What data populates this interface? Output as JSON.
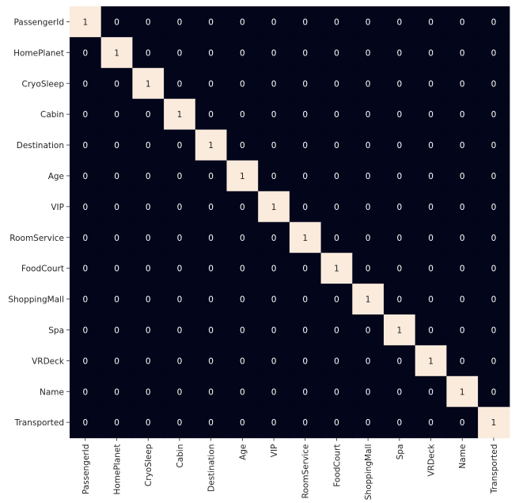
{
  "chart_data": {
    "type": "heatmap",
    "title": "",
    "xlabel": "",
    "ylabel": "",
    "labels": [
      "PassengerId",
      "HomePlanet",
      "CryoSleep",
      "Cabin",
      "Destination",
      "Age",
      "VIP",
      "RoomService",
      "FoodCourt",
      "ShoppingMall",
      "Spa",
      "VRDeck",
      "Name",
      "Transported"
    ],
    "matrix": [
      [
        1,
        0,
        0,
        0,
        0,
        0,
        0,
        0,
        0,
        0,
        0,
        0,
        0,
        0
      ],
      [
        0,
        1,
        0,
        0,
        0,
        0,
        0,
        0,
        0,
        0,
        0,
        0,
        0,
        0
      ],
      [
        0,
        0,
        1,
        0,
        0,
        0,
        0,
        0,
        0,
        0,
        0,
        0,
        0,
        0
      ],
      [
        0,
        0,
        0,
        1,
        0,
        0,
        0,
        0,
        0,
        0,
        0,
        0,
        0,
        0
      ],
      [
        0,
        0,
        0,
        0,
        1,
        0,
        0,
        0,
        0,
        0,
        0,
        0,
        0,
        0
      ],
      [
        0,
        0,
        0,
        0,
        0,
        1,
        0,
        0,
        0,
        0,
        0,
        0,
        0,
        0
      ],
      [
        0,
        0,
        0,
        0,
        0,
        0,
        1,
        0,
        0,
        0,
        0,
        0,
        0,
        0
      ],
      [
        0,
        0,
        0,
        0,
        0,
        0,
        0,
        1,
        0,
        0,
        0,
        0,
        0,
        0
      ],
      [
        0,
        0,
        0,
        0,
        0,
        0,
        0,
        0,
        1,
        0,
        0,
        0,
        0,
        0
      ],
      [
        0,
        0,
        0,
        0,
        0,
        0,
        0,
        0,
        0,
        1,
        0,
        0,
        0,
        0
      ],
      [
        0,
        0,
        0,
        0,
        0,
        0,
        0,
        0,
        0,
        0,
        1,
        0,
        0,
        0
      ],
      [
        0,
        0,
        0,
        0,
        0,
        0,
        0,
        0,
        0,
        0,
        0,
        1,
        0,
        0
      ],
      [
        0,
        0,
        0,
        0,
        0,
        0,
        0,
        0,
        0,
        0,
        0,
        0,
        1,
        0
      ],
      [
        0,
        0,
        0,
        0,
        0,
        0,
        0,
        0,
        0,
        0,
        0,
        0,
        0,
        1
      ]
    ],
    "value_range": [
      0,
      1
    ],
    "colors": {
      "low": "#03051a",
      "high": "#faebdd",
      "text_on_low": "#ffffff",
      "text_on_high": "#262626"
    },
    "annotations": true,
    "colorbar": false,
    "grid": false
  }
}
